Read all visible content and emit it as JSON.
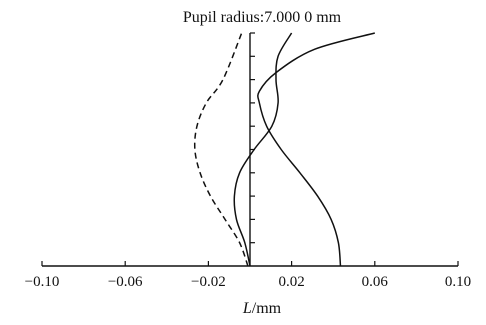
{
  "chart_data": {
    "type": "line",
    "title": "Pupil radius:7.000 0 mm",
    "xlabel_italic": "L",
    "xlabel_unit": "/mm",
    "xlim": [
      -0.1,
      0.1
    ],
    "ylim": [
      0,
      1
    ],
    "x_ticks": [
      -0.1,
      -0.06,
      -0.02,
      0.02,
      0.06,
      0.1
    ],
    "x_tick_labels": [
      "−0.10",
      "−0.06",
      "−0.02",
      "0.02",
      "0.06",
      "0.10"
    ],
    "y_ticks": [
      0.1,
      0.2,
      0.3,
      0.4,
      0.5,
      0.6,
      0.7,
      0.8,
      0.9,
      1.0
    ],
    "grid": false,
    "series": [
      {
        "style": "dashed",
        "x": [
          -0.001,
          -0.005,
          -0.012,
          -0.019,
          -0.024,
          -0.0265,
          -0.0255,
          -0.021,
          -0.013,
          -0.004
        ],
        "y": [
          0.0,
          0.1,
          0.2,
          0.3,
          0.4,
          0.5,
          0.6,
          0.7,
          0.8,
          1.0
        ]
      },
      {
        "style": "solid",
        "x": [
          0.0,
          -0.0025,
          -0.0065,
          -0.0075,
          -0.005,
          0.002,
          0.0105,
          0.0135,
          0.0125,
          0.0135,
          0.02
        ],
        "y": [
          0.0,
          0.1,
          0.2,
          0.3,
          0.4,
          0.5,
          0.6,
          0.7,
          0.8,
          0.9,
          1.0
        ]
      },
      {
        "style": "solid",
        "x": [
          0.0435,
          0.0425,
          0.039,
          0.0325,
          0.024,
          0.015,
          0.008,
          0.0045,
          0.0045,
          0.0125,
          0.031,
          0.06
        ],
        "y": [
          0.0,
          0.1,
          0.2,
          0.3,
          0.4,
          0.5,
          0.6,
          0.7,
          0.75,
          0.83,
          0.93,
          1.0
        ]
      }
    ]
  }
}
